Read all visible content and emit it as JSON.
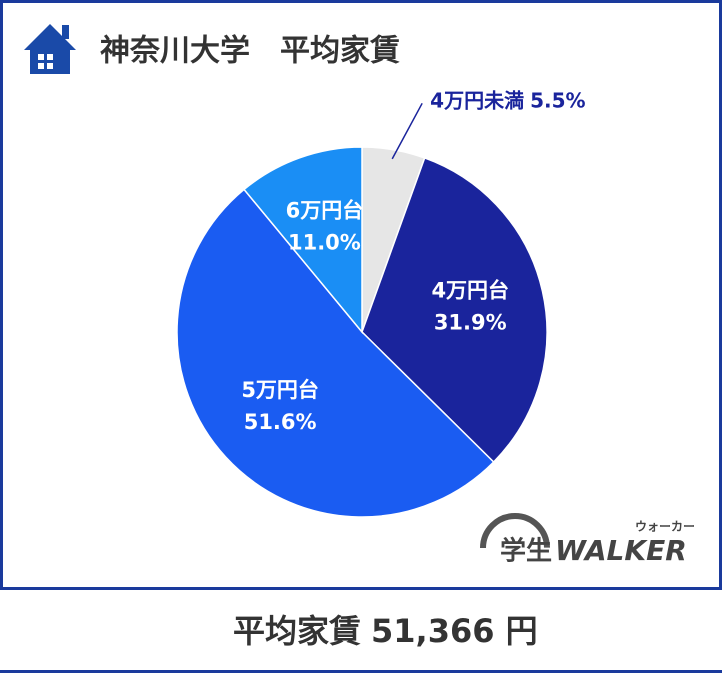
{
  "chart_data": {
    "type": "pie",
    "title": "神奈川大学　平均家賃",
    "categories": [
      "4万円未満",
      "4万円台",
      "5万円台",
      "6万円台"
    ],
    "values": [
      5.5,
      31.9,
      51.6,
      11.0
    ],
    "value_labels": [
      "5.5%",
      "31.9%",
      "51.6%",
      "11.0%"
    ],
    "colors": [
      "#e6e6e6",
      "#1a249c",
      "#1a5cf2",
      "#1a8ef5"
    ]
  },
  "footer": {
    "label": "平均家賃",
    "value": "51,366 円"
  },
  "logo": {
    "main": "学生",
    "brand": "WALKER",
    "reading": "ウォーカー"
  }
}
